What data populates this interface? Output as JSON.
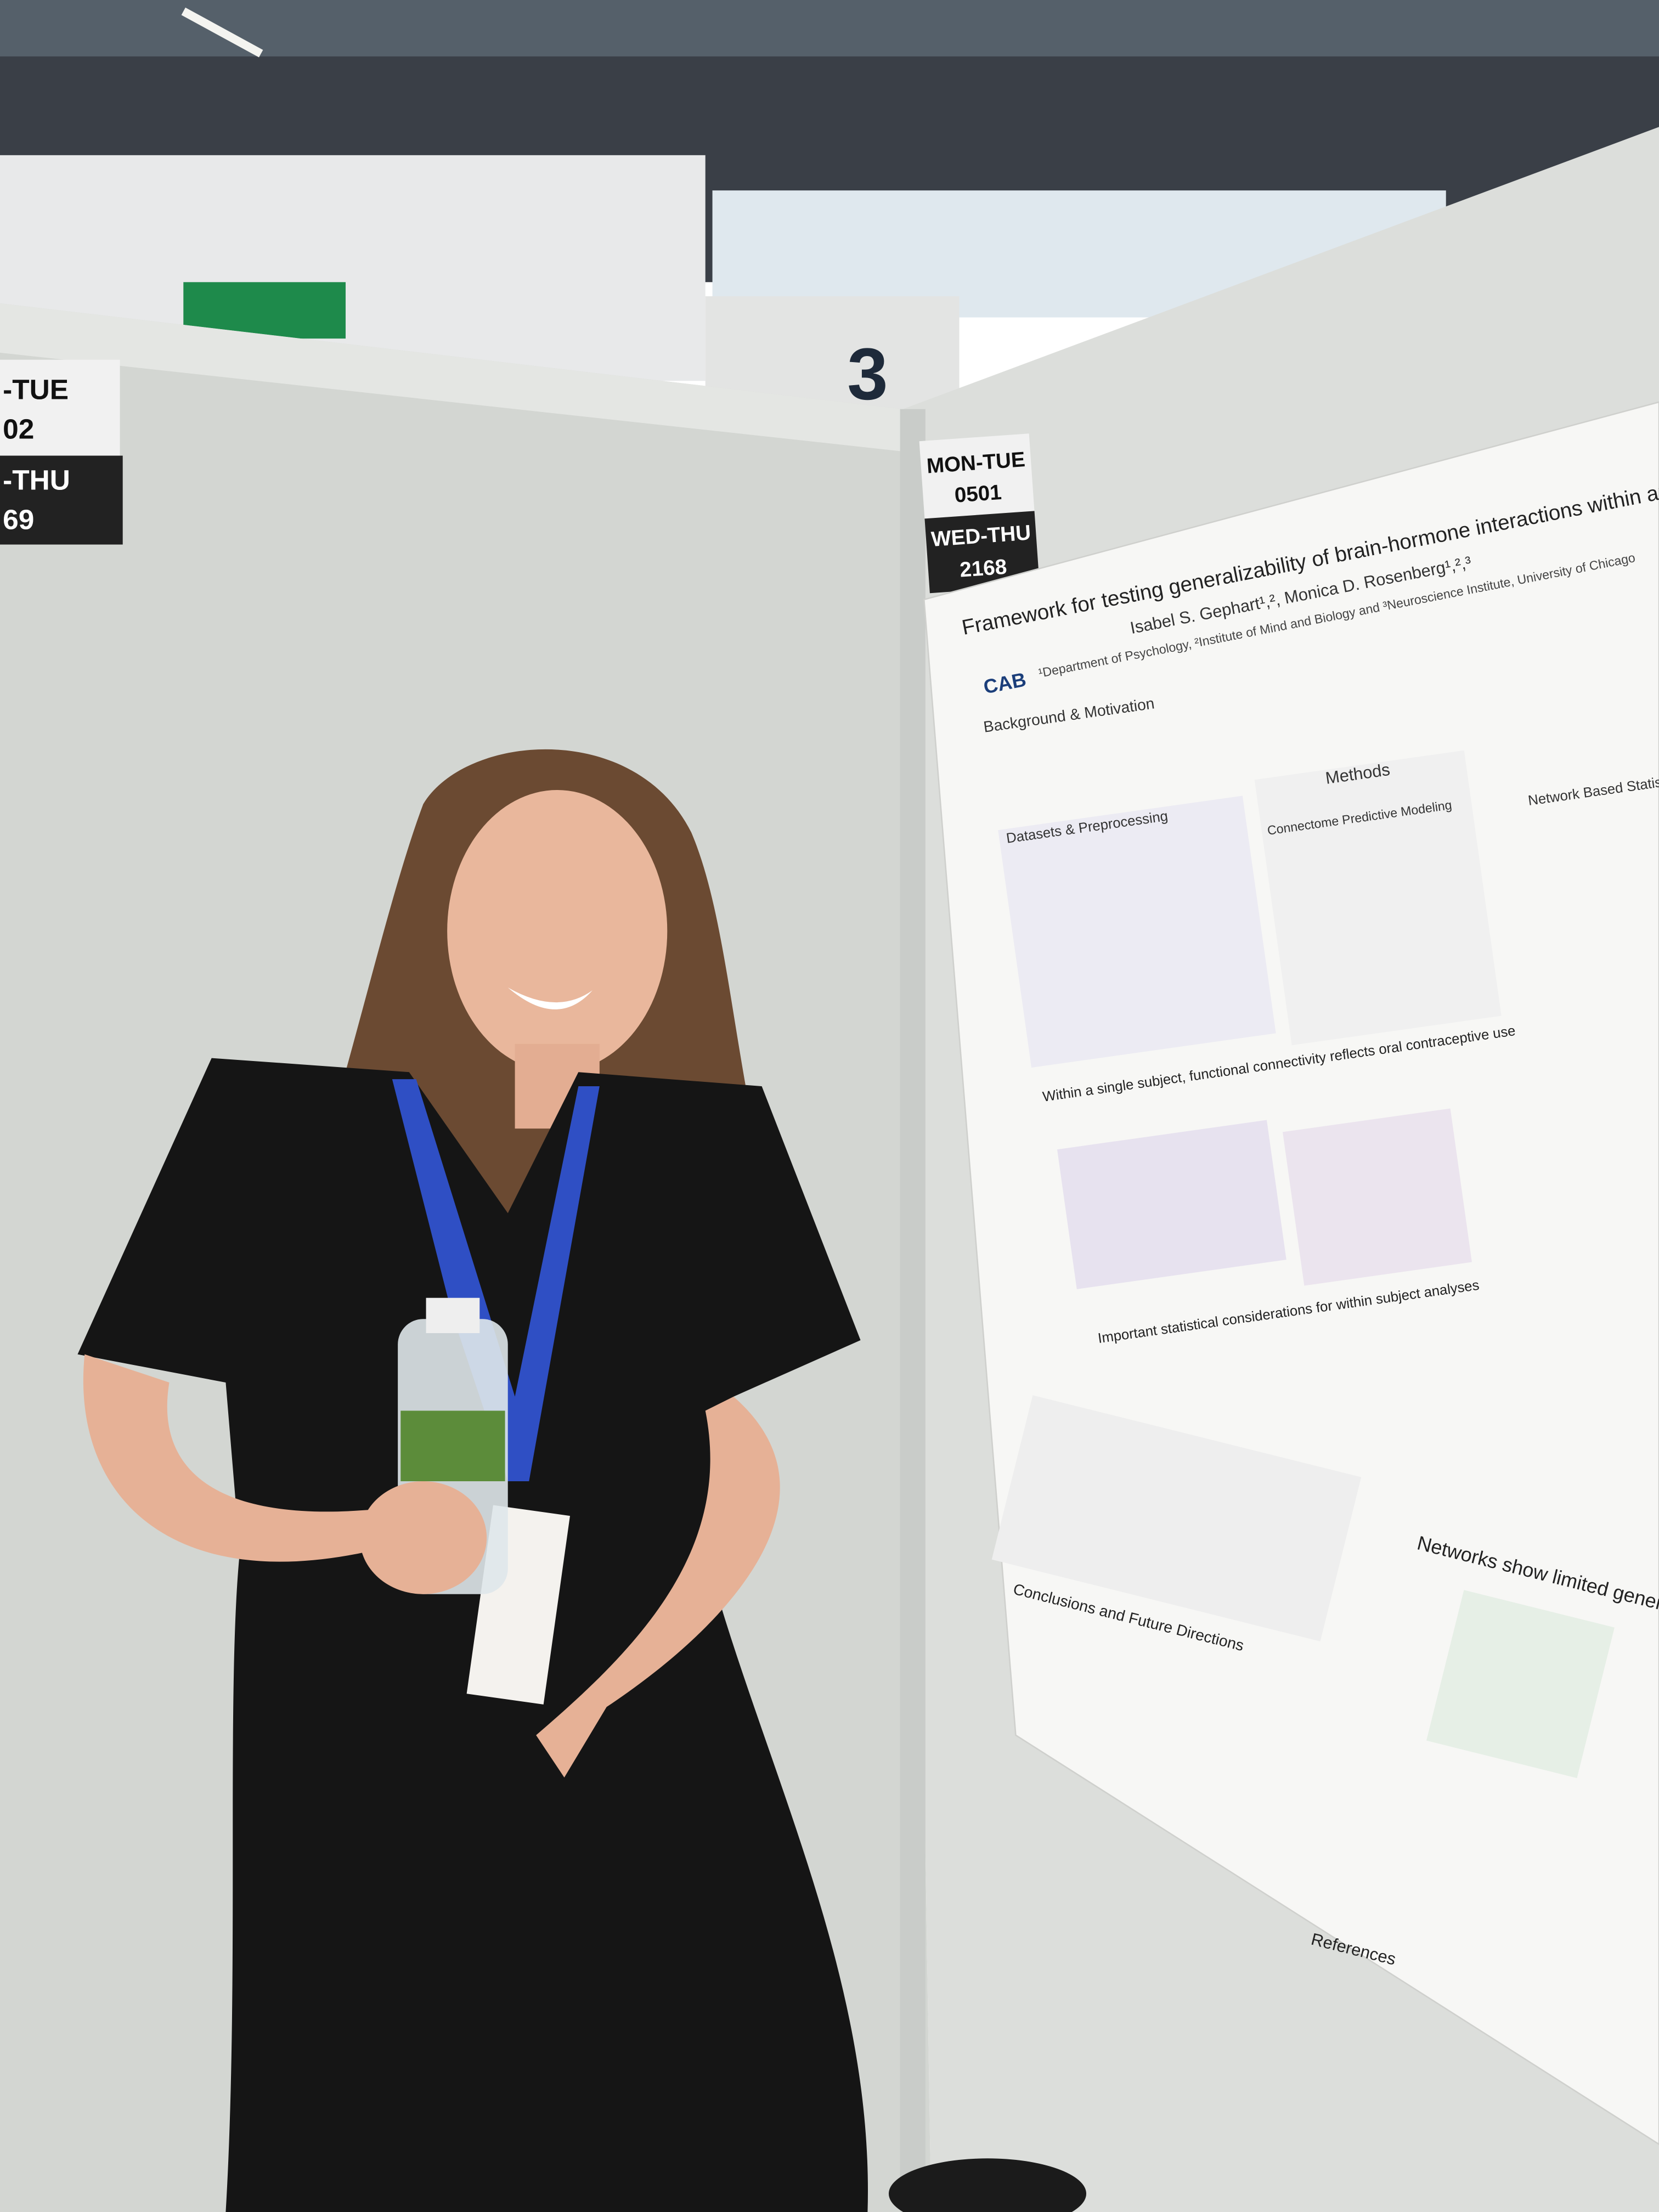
{
  "signs": [
    {
      "lines": [
        "-TUE",
        "02",
        "-THU",
        "69"
      ]
    },
    {
      "lines": [
        "MON-TUE",
        "0501",
        "WED-THU",
        "2168"
      ]
    }
  ],
  "hall_number": "3",
  "poster": {
    "title": "Framework for testing generalizability of brain-hormone interactions within and across in",
    "authors": "Isabel S. Gephart¹,², Monica D. Rosenberg¹,²,³",
    "affiliation": "¹Department of Psychology, ²Institute of Mind and Biology and ³Neuroscience Institute, University of Chicago",
    "logo": "CAB",
    "sections": [
      "Background & Motivation",
      "Datasets & Preprocessing",
      "Methods",
      "Connectome Predictive Modeling",
      "Network Based Statistics",
      "Within a single subject, functional connectivity reflects oral contraceptive use",
      "Important statistical considerations for within subject analyses",
      "Conclusions and Future Directions",
      "Networks show limited generaliz",
      "References"
    ]
  }
}
